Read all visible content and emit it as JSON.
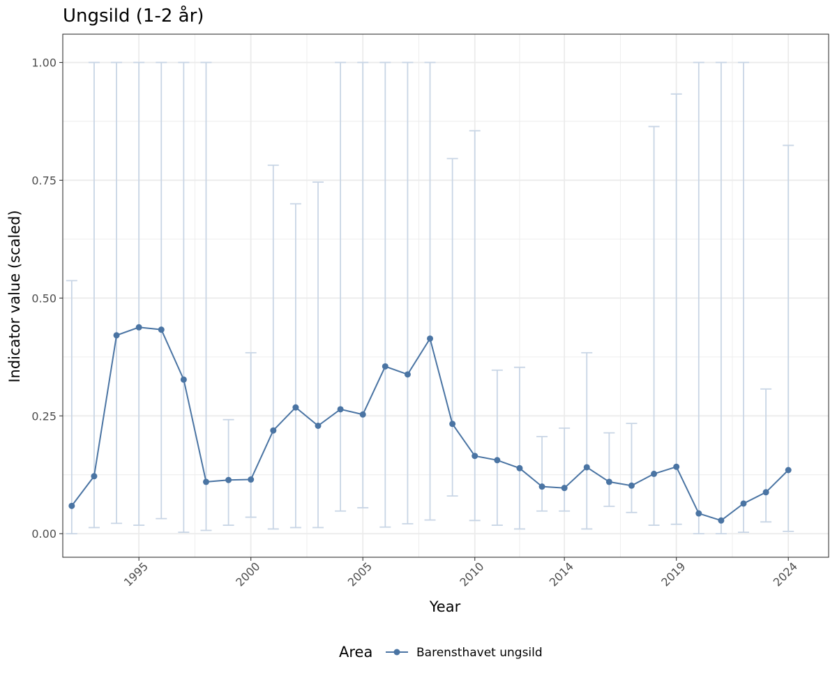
{
  "chart_data": {
    "type": "line",
    "title": "Ungsild (1-2 år)",
    "xlabel": "Year",
    "ylabel": "Indicator value (scaled)",
    "xlim": [
      1991.6,
      2025.8
    ],
    "ylim": [
      -0.05,
      1.06
    ],
    "x_ticks": [
      1995,
      2000,
      2005,
      2010,
      2014,
      2019,
      2024
    ],
    "x_tick_labels": [
      "1995",
      "2000",
      "2005",
      "2010",
      "2014",
      "2019",
      "2024"
    ],
    "y_ticks": [
      0,
      0.25,
      0.5,
      0.75,
      1.0
    ],
    "y_tick_labels": [
      "0.00",
      "0.25",
      "0.50",
      "0.75",
      "1.00"
    ],
    "grid": true,
    "legend": {
      "title": "Area",
      "position": "bottom"
    },
    "series": [
      {
        "name": "Barensthavet ungsild",
        "color": "#4a74a3",
        "errorbar_color": "#c8d5e5",
        "x": [
          1992,
          1993,
          1994,
          1995,
          1996,
          1997,
          1998,
          1999,
          2000,
          2001,
          2002,
          2003,
          2004,
          2005,
          2006,
          2007,
          2008,
          2009,
          2010,
          2011,
          2012,
          2013,
          2014,
          2015,
          2016,
          2017,
          2018,
          2019,
          2020,
          2021,
          2022,
          2023,
          2024
        ],
        "y": [
          0.059,
          0.122,
          0.421,
          0.438,
          0.433,
          0.327,
          0.11,
          0.114,
          0.115,
          0.219,
          0.268,
          0.229,
          0.264,
          0.253,
          0.355,
          0.338,
          0.414,
          0.233,
          0.165,
          0.156,
          0.139,
          0.1,
          0.097,
          0.141,
          0.11,
          0.102,
          0.127,
          0.142,
          0.043,
          0.028,
          0.064,
          0.088,
          0.135
        ],
        "lower": [
          0.0,
          0.013,
          0.022,
          0.018,
          0.032,
          0.003,
          0.007,
          0.018,
          0.035,
          0.01,
          0.013,
          0.013,
          0.048,
          0.055,
          0.014,
          0.021,
          0.029,
          0.08,
          0.028,
          0.018,
          0.01,
          0.048,
          0.048,
          0.01,
          0.058,
          0.045,
          0.018,
          0.02,
          0.0,
          0.0,
          0.003,
          0.025,
          0.005
        ],
        "upper": [
          0.537,
          1.0,
          1.0,
          1.0,
          1.0,
          1.0,
          1.0,
          0.242,
          0.384,
          0.782,
          0.7,
          0.746,
          1.0,
          1.0,
          1.0,
          1.0,
          1.0,
          0.796,
          0.855,
          0.347,
          0.353,
          0.206,
          0.224,
          0.384,
          0.214,
          0.234,
          0.864,
          0.933,
          1.0,
          1.0,
          1.0,
          0.307,
          0.824
        ]
      }
    ]
  }
}
